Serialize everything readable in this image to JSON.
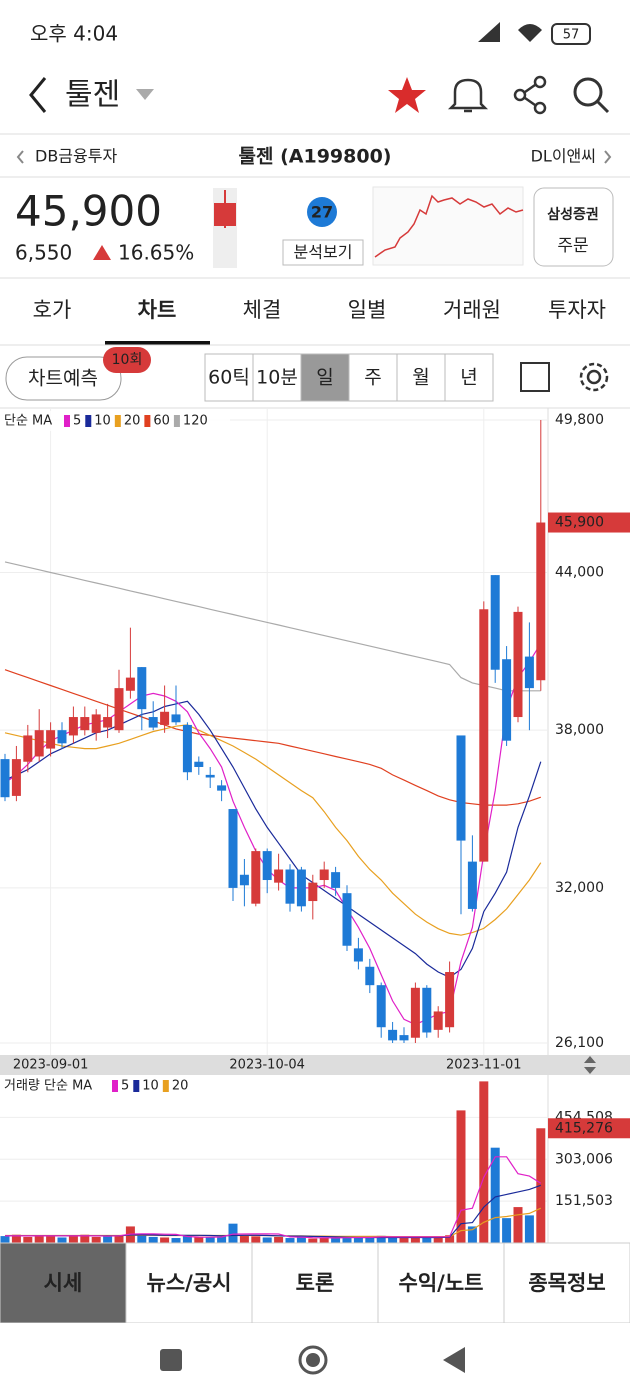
{
  "status_bar": {
    "time": "오후 4:04",
    "battery": "57"
  },
  "header": {
    "title": "툴젠"
  },
  "nav": {
    "prev": "DB금융투자",
    "name": "툴젠 (A199800)",
    "next": "DL이앤씨"
  },
  "quote": {
    "price": "45,900",
    "change": "6,550",
    "change_pct": "16.65%",
    "analysis_count": "27",
    "analysis_label": "분석보기",
    "broker": "삼성증권",
    "order": "주문"
  },
  "tabs": {
    "items": [
      "호가",
      "차트",
      "체결",
      "일별",
      "거래원",
      "투자자"
    ],
    "active": 1
  },
  "toolbar": {
    "predict": "차트예측",
    "predict_badge": "10회",
    "periods": [
      "60틱",
      "10분",
      "일",
      "주",
      "월",
      "년"
    ],
    "active_period": 2
  },
  "chart_data": [
    {
      "type": "candlestick",
      "title": "단순 MA",
      "categories": [
        null,
        null,
        null,
        null,
        "2023-09-01",
        null,
        null,
        null,
        null,
        null,
        null,
        null,
        null,
        null,
        null,
        null,
        null,
        null,
        null,
        null,
        null,
        null,
        null,
        "2023-10-04",
        null,
        null,
        null,
        null,
        null,
        null,
        null,
        null,
        null,
        null,
        null,
        null,
        null,
        null,
        null,
        null,
        null,
        null,
        "2023-11-01",
        null,
        null,
        null,
        null,
        null
      ],
      "candles": [
        [
          36900,
          37100,
          35300,
          35450
        ],
        [
          35500,
          37400,
          35300,
          36900
        ],
        [
          36800,
          38200,
          36400,
          37800
        ],
        [
          37000,
          38800,
          36800,
          38000
        ],
        [
          37300,
          38300,
          37000,
          38000
        ],
        [
          38000,
          38300,
          37300,
          37500
        ],
        [
          37800,
          38900,
          37500,
          38500
        ],
        [
          38000,
          38900,
          37800,
          38500
        ],
        [
          37900,
          38800,
          37600,
          38600
        ],
        [
          38100,
          39000,
          37700,
          38500
        ],
        [
          38000,
          40300,
          37900,
          39600
        ],
        [
          39500,
          41900,
          39200,
          40000
        ],
        [
          40400,
          40400,
          38000,
          38800
        ],
        [
          38500,
          39100,
          38000,
          38100
        ],
        [
          38200,
          39700,
          37900,
          38700
        ],
        [
          38600,
          39700,
          38200,
          38300
        ],
        [
          38200,
          38300,
          36100,
          36400
        ],
        [
          36800,
          37000,
          36300,
          36600
        ],
        [
          36300,
          36600,
          35800,
          36200
        ],
        [
          35900,
          36100,
          35300,
          35700
        ],
        [
          35000,
          35000,
          31500,
          32000
        ],
        [
          32500,
          33100,
          31300,
          32100
        ],
        [
          31400,
          33500,
          31300,
          33400
        ],
        [
          33400,
          33500,
          31800,
          32300
        ],
        [
          32200,
          33300,
          31900,
          32700
        ],
        [
          32700,
          32900,
          31100,
          31400
        ],
        [
          32700,
          32800,
          31100,
          31300
        ],
        [
          31500,
          32500,
          30800,
          32200
        ],
        [
          32300,
          33000,
          32000,
          32700
        ],
        [
          32600,
          32800,
          31700,
          32000
        ],
        [
          31800,
          32100,
          29600,
          29800
        ],
        [
          29700,
          30100,
          28900,
          29200
        ],
        [
          29000,
          29300,
          28000,
          28300
        ],
        [
          28300,
          28400,
          26300,
          26700
        ],
        [
          26600,
          26900,
          26100,
          26200
        ],
        [
          26400,
          26700,
          26100,
          26200
        ],
        [
          26300,
          28400,
          26100,
          28200
        ],
        [
          28200,
          28300,
          26300,
          26500
        ],
        [
          26600,
          27500,
          26300,
          27300
        ],
        [
          26700,
          29200,
          26500,
          28800
        ],
        [
          37800,
          37800,
          31000,
          33800
        ],
        [
          33000,
          34000,
          31100,
          31200
        ],
        [
          33000,
          42900,
          33000,
          42600
        ],
        [
          43900,
          43900,
          39800,
          40300
        ],
        [
          40700,
          41200,
          37400,
          37600
        ],
        [
          38500,
          42700,
          38300,
          42500
        ],
        [
          40800,
          42100,
          38000,
          39600
        ],
        [
          39900,
          49800,
          39500,
          45900
        ]
      ],
      "up_color": "#d63a3a",
      "down_color": "#1e7ad6",
      "series": [
        {
          "name": "5",
          "color": "#e020c8",
          "values": [
            36000,
            36300,
            36700,
            37200,
            37600,
            37800,
            38000,
            38200,
            38300,
            38400,
            38700,
            39000,
            39300,
            39400,
            39300,
            39100,
            38700,
            37900,
            37300,
            36600,
            35300,
            34300,
            33400,
            32700,
            32300,
            32000,
            32000,
            32000,
            32100,
            31900,
            31200,
            30500,
            29700,
            28700,
            27700,
            27000,
            26800,
            27000,
            27200,
            27300,
            29200,
            30500,
            33300,
            35700,
            38800,
            40000,
            40600,
            41300
          ]
        },
        {
          "name": "10",
          "color": "#1a2a9a",
          "values": [
            36100,
            36300,
            36500,
            36800,
            37100,
            37300,
            37500,
            37700,
            37900,
            38000,
            38200,
            38400,
            38600,
            38700,
            38900,
            39000,
            39100,
            38600,
            38000,
            37300,
            36600,
            35800,
            35000,
            34300,
            33700,
            33100,
            32500,
            32200,
            31900,
            31600,
            31300,
            31000,
            30700,
            30400,
            30100,
            29800,
            29500,
            29100,
            28800,
            28600,
            28900,
            29700,
            31100,
            31800,
            32600,
            34300,
            35500,
            36800
          ]
        },
        {
          "name": "20",
          "color": "#e8a020",
          "values": [
            37900,
            37800,
            37700,
            37600,
            37500,
            37400,
            37350,
            37300,
            37300,
            37400,
            37500,
            37650,
            37800,
            37950,
            38050,
            38150,
            38200,
            38000,
            37800,
            37600,
            37400,
            37150,
            36900,
            36600,
            36300,
            36000,
            35700,
            35430,
            34900,
            34300,
            33800,
            33200,
            32700,
            32300,
            31800,
            31400,
            31000,
            30700,
            30450,
            30270,
            30200,
            30300,
            30460,
            30800,
            31200,
            31750,
            32300,
            32960
          ]
        },
        {
          "name": "60",
          "color": "#e04020",
          "values": [
            40300,
            40150,
            40000,
            39850,
            39700,
            39550,
            39400,
            39250,
            39100,
            38950,
            38800,
            38650,
            38500,
            38350,
            38200,
            38050,
            37950,
            37850,
            37800,
            37750,
            37700,
            37650,
            37600,
            37550,
            37500,
            37400,
            37300,
            37200,
            37100,
            37000,
            36900,
            36800,
            36700,
            36550,
            36300,
            36100,
            35900,
            35700,
            35500,
            35350,
            35250,
            35200,
            35150,
            35150,
            35150,
            35200,
            35300,
            35450
          ]
        },
        {
          "name": "120",
          "color": "#aaaaaa",
          "values": [
            44400,
            44300,
            44200,
            44100,
            44000,
            43900,
            43800,
            43700,
            43600,
            43500,
            43400,
            43300,
            43200,
            43100,
            43000,
            42900,
            42800,
            42700,
            42600,
            42500,
            42400,
            42300,
            42200,
            42100,
            42000,
            41900,
            41800,
            41700,
            41600,
            41500,
            41400,
            41300,
            41200,
            41100,
            41000,
            40900,
            40800,
            40700,
            40600,
            40500,
            40000,
            39800,
            39700,
            39600,
            39500,
            39500,
            39500,
            39500
          ]
        }
      ],
      "ylim": [
        26100,
        49800
      ],
      "yticks": [
        {
          "value": 26100,
          "label": "26,100"
        },
        {
          "value": 32000,
          "label": "32,000"
        },
        {
          "value": 38000,
          "label": "38,000"
        },
        {
          "value": 44000,
          "label": "44,000"
        },
        {
          "value": 49800,
          "label": "49,800"
        }
      ],
      "grid": true
    },
    {
      "type": "bar",
      "title": "거래량 단순 MA",
      "values": [
        25000,
        30000,
        22000,
        28000,
        24000,
        20000,
        26000,
        30000,
        22000,
        25000,
        28000,
        60000,
        30000,
        22000,
        20000,
        18000,
        25000,
        22000,
        20000,
        24000,
        70000,
        26000,
        24000,
        20000,
        22000,
        18000,
        20000,
        16000,
        18000,
        20000,
        22000,
        24000,
        20000,
        26000,
        22000,
        18000,
        20000,
        24000,
        22000,
        28000,
        480000,
        60000,
        585000,
        345000,
        90000,
        130000,
        100000,
        415276
      ],
      "last_label": "415,276",
      "series": [
        {
          "name": "5",
          "color": "#e020c8",
          "values": [
            25800,
            25800,
            25800,
            25800,
            25800,
            26000,
            25600,
            25600,
            26000,
            24600,
            26200,
            32200,
            33000,
            33000,
            32000,
            31200,
            23600,
            21400,
            21000,
            21800,
            32200,
            32400,
            32800,
            32800,
            32400,
            22000,
            21000,
            19200,
            19000,
            18400,
            19200,
            20000,
            20000,
            22000,
            22000,
            22000,
            22000,
            22000,
            22000,
            22800,
            118400,
            126000,
            238000,
            312000,
            312000,
            251000,
            242000,
            216000
          ]
        },
        {
          "name": "10",
          "color": "#1a2a9a",
          "values": [
            26000,
            26000,
            26000,
            26000,
            26000,
            26000,
            26000,
            26000,
            26000,
            25800,
            26000,
            29000,
            29400,
            29000,
            28000,
            28000,
            28000,
            28000,
            27000,
            26000,
            27000,
            28000,
            28000,
            27000,
            26000,
            25000,
            25000,
            24000,
            23000,
            22000,
            21000,
            20000,
            20000,
            20000,
            20000,
            20000,
            20000,
            20000,
            20000,
            21000,
            70000,
            74000,
            130000,
            167000,
            176000,
            185000,
            194000,
            209000
          ]
        },
        {
          "name": "20",
          "color": "#e8a020",
          "values": [
            27000,
            27000,
            27000,
            27000,
            27000,
            27000,
            27000,
            27000,
            27000,
            27000,
            27000,
            28000,
            28000,
            28000,
            27000,
            27000,
            27000,
            27000,
            27000,
            27000,
            27000,
            27000,
            27000,
            27000,
            26000,
            26000,
            26000,
            25000,
            25000,
            24000,
            24000,
            24000,
            24000,
            24000,
            23000,
            23000,
            23000,
            23000,
            23000,
            23000,
            45000,
            48000,
            75000,
            92000,
            96000,
            102000,
            107000,
            126000
          ]
        }
      ],
      "ylim": [
        0,
        590000
      ],
      "yticks": [
        {
          "value": 151503,
          "label": "151,503"
        },
        {
          "value": 303006,
          "label": "303,006"
        },
        {
          "value": 454508,
          "label": "454,508"
        }
      ],
      "grid": true
    }
  ],
  "bottom_nav": {
    "items": [
      "시세",
      "뉴스/공시",
      "토론",
      "수익/노트",
      "종목정보"
    ],
    "active": 0
  }
}
